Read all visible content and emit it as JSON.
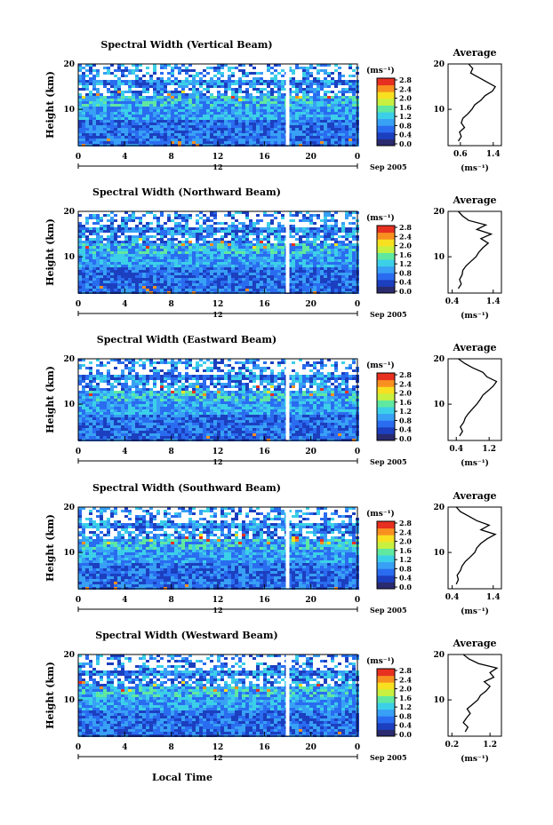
{
  "figure": {
    "xlabel": "Local Time",
    "date_label": "Sep 2005",
    "day_label": "12",
    "colorbar_unit": "(ms⁻¹)",
    "colorbar_ticks": [
      "0.0",
      "0.4",
      "0.8",
      "1.2",
      "1.6",
      "2.0",
      "2.4",
      "2.8"
    ],
    "height_label": "Height (km)",
    "average_title": "Average",
    "average_xlabel": "(ms⁻¹)",
    "colors": [
      "#2a2a6e",
      "#1c3fbf",
      "#2a6cf0",
      "#38a0f5",
      "#3cd0e8",
      "#60e8a0",
      "#c8f040",
      "#f8e020",
      "#f89020",
      "#e83020"
    ]
  },
  "chart_data": [
    {
      "type": "heatmap",
      "title": "Spectral Width (Vertical Beam)",
      "x_ticks": [
        "0",
        "4",
        "8",
        "12",
        "16",
        "20",
        "0"
      ],
      "y_ticks": [
        "20",
        "10"
      ],
      "xlim": [
        0,
        24
      ],
      "ylim": [
        2,
        20
      ],
      "avg_ticks": [
        "0.6",
        "1.4"
      ],
      "avg_xlim": [
        0.3,
        1.6
      ],
      "average_profile": [
        [
          0.55,
          3
        ],
        [
          0.62,
          4
        ],
        [
          0.58,
          5
        ],
        [
          0.7,
          6
        ],
        [
          0.62,
          7
        ],
        [
          0.66,
          8
        ],
        [
          0.78,
          9
        ],
        [
          0.88,
          10
        ],
        [
          0.95,
          11
        ],
        [
          1.1,
          12
        ],
        [
          1.2,
          13
        ],
        [
          1.38,
          14
        ],
        [
          1.45,
          15
        ],
        [
          1.25,
          16
        ],
        [
          1.05,
          17
        ],
        [
          0.95,
          17.5
        ],
        [
          0.85,
          18
        ],
        [
          0.9,
          19
        ],
        [
          0.8,
          20
        ]
      ]
    },
    {
      "type": "heatmap",
      "title": "Spectral Width (Northward Beam)",
      "x_ticks": [
        "0",
        "4",
        "8",
        "12",
        "16",
        "20",
        "0"
      ],
      "y_ticks": [
        "20",
        "10"
      ],
      "xlim": [
        0,
        24
      ],
      "ylim": [
        2,
        20
      ],
      "avg_ticks": [
        "0.4",
        "1.4"
      ],
      "avg_xlim": [
        0.3,
        1.6
      ],
      "average_profile": [
        [
          0.55,
          3
        ],
        [
          0.62,
          4
        ],
        [
          0.58,
          5
        ],
        [
          0.64,
          6
        ],
        [
          0.66,
          7
        ],
        [
          0.74,
          8
        ],
        [
          0.86,
          9
        ],
        [
          0.98,
          10
        ],
        [
          1.05,
          11
        ],
        [
          1.15,
          12
        ],
        [
          1.28,
          13
        ],
        [
          1.1,
          14
        ],
        [
          1.35,
          15
        ],
        [
          1.0,
          16
        ],
        [
          1.22,
          17
        ],
        [
          0.8,
          18
        ],
        [
          0.65,
          19
        ],
        [
          0.55,
          20
        ]
      ]
    },
    {
      "type": "heatmap",
      "title": "Spectral Width (Eastward Beam)",
      "x_ticks": [
        "0",
        "4",
        "8",
        "12",
        "16",
        "20",
        "0"
      ],
      "y_ticks": [
        "20",
        "10"
      ],
      "xlim": [
        0,
        24
      ],
      "ylim": [
        2,
        20
      ],
      "avg_ticks": [
        "0.4",
        "1.2"
      ],
      "avg_xlim": [
        0.2,
        1.5
      ],
      "average_profile": [
        [
          0.48,
          3
        ],
        [
          0.55,
          4
        ],
        [
          0.5,
          5
        ],
        [
          0.58,
          6
        ],
        [
          0.62,
          7
        ],
        [
          0.7,
          8
        ],
        [
          0.8,
          9
        ],
        [
          0.9,
          10
        ],
        [
          0.98,
          11
        ],
        [
          1.05,
          12
        ],
        [
          1.18,
          13
        ],
        [
          1.3,
          14
        ],
        [
          1.38,
          15
        ],
        [
          1.15,
          16
        ],
        [
          1.05,
          17
        ],
        [
          0.8,
          18
        ],
        [
          0.6,
          19
        ],
        [
          0.45,
          20
        ]
      ]
    },
    {
      "type": "heatmap",
      "title": "Spectral Width (Southward Beam)",
      "x_ticks": [
        "0",
        "4",
        "8",
        "12",
        "16",
        "20",
        "0"
      ],
      "y_ticks": [
        "20",
        "10"
      ],
      "xlim": [
        0,
        24
      ],
      "ylim": [
        2,
        20
      ],
      "avg_ticks": [
        "0.4",
        "1.4"
      ],
      "avg_xlim": [
        0.3,
        1.6
      ],
      "average_profile": [
        [
          0.5,
          3
        ],
        [
          0.55,
          4
        ],
        [
          0.52,
          5
        ],
        [
          0.6,
          6
        ],
        [
          0.64,
          7
        ],
        [
          0.72,
          8
        ],
        [
          0.84,
          9
        ],
        [
          0.95,
          10
        ],
        [
          1.0,
          11
        ],
        [
          1.1,
          12
        ],
        [
          1.25,
          13
        ],
        [
          1.45,
          14
        ],
        [
          1.1,
          15
        ],
        [
          1.3,
          16
        ],
        [
          1.0,
          17
        ],
        [
          0.8,
          18
        ],
        [
          0.6,
          19
        ],
        [
          0.5,
          20
        ]
      ]
    },
    {
      "type": "heatmap",
      "title": "Spectral Width (Westward Beam)",
      "x_ticks": [
        "0",
        "4",
        "8",
        "12",
        "16",
        "20",
        "0"
      ],
      "y_ticks": [
        "20",
        "10"
      ],
      "xlim": [
        0,
        24
      ],
      "ylim": [
        2,
        20
      ],
      "avg_ticks": [
        "0.2",
        "1.2"
      ],
      "avg_xlim": [
        0.1,
        1.5
      ],
      "average_profile": [
        [
          0.55,
          3
        ],
        [
          0.62,
          4
        ],
        [
          0.5,
          5
        ],
        [
          0.58,
          6
        ],
        [
          0.68,
          7
        ],
        [
          0.6,
          8
        ],
        [
          0.74,
          9
        ],
        [
          0.88,
          10
        ],
        [
          0.95,
          11
        ],
        [
          1.1,
          12
        ],
        [
          1.2,
          13
        ],
        [
          1.05,
          14
        ],
        [
          1.3,
          15
        ],
        [
          1.2,
          16
        ],
        [
          1.38,
          17
        ],
        [
          0.9,
          18
        ],
        [
          0.65,
          19
        ],
        [
          0.5,
          20
        ]
      ]
    }
  ]
}
